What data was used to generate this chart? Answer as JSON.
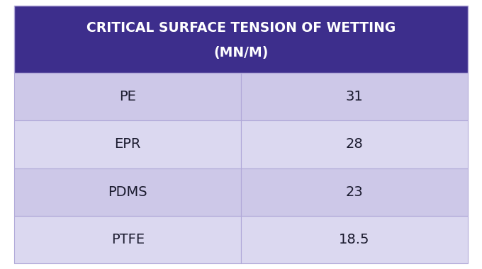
{
  "title_line1": "CRITICAL SURFACE TENSION OF WETTING",
  "title_line2": "(MN/M)",
  "header_bg": "#3d2e8c",
  "header_text_color": "#ffffff",
  "row_bg_odd": "#cdc8e8",
  "row_bg_even": "#dbd8f0",
  "row_text_color": "#1a1a2e",
  "border_color": "#b0a8d8",
  "materials": [
    "PE",
    "EPR",
    "PDMS",
    "PTFE"
  ],
  "values": [
    "31",
    "28",
    "23",
    "18.5"
  ],
  "fig_width": 6.8,
  "fig_height": 3.8,
  "dpi": 100
}
